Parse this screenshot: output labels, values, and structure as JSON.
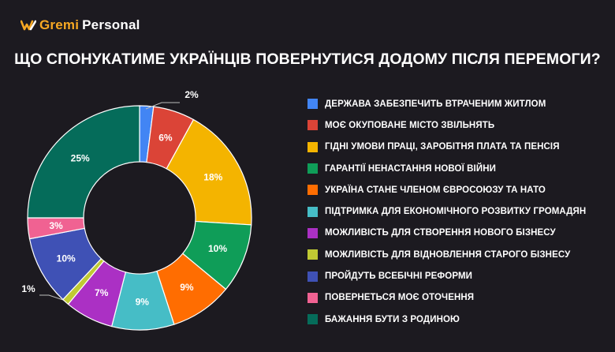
{
  "brand": {
    "name_accent": "Gremi",
    "name_rest": "Personal",
    "icon": "gremi-logo-icon",
    "accent_color": "#f7a823"
  },
  "chart_data": {
    "type": "pie",
    "variant": "donut",
    "title": "ЩО СПОНУКАТИМЕ УКРАЇНЦІВ ПОВЕРНУТИСЯ ДОДОМУ ПІСЛЯ ПЕРЕМОГИ?",
    "legend_position": "right",
    "slices": [
      {
        "label": "ДЕРЖАВА ЗАБЕЗПЕЧИТЬ ВТРАЧЕНИМ ЖИТЛОМ",
        "value": 2,
        "value_label": "2%",
        "color": "#4285f4"
      },
      {
        "label": "МОЄ ОКУПОВАНЕ МІСТО ЗВІЛЬНЯТЬ",
        "value": 6,
        "value_label": "6%",
        "color": "#db4437"
      },
      {
        "label": "ГІДНІ УМОВИ ПРАЦІ, ЗАРОБІТНЯ ПЛАТА ТА ПЕНСІЯ",
        "value": 18,
        "value_label": "18%",
        "color": "#f4b400"
      },
      {
        "label": "ГАРАНТІЇ НЕНАСТАННЯ НОВОЇ ВІЙНИ",
        "value": 10,
        "value_label": "10%",
        "color": "#0f9d58"
      },
      {
        "label": "УКРАЇНА СТАНЕ ЧЛЕНОМ ЄВРОСОЮЗУ ТА НАТО",
        "value": 9,
        "value_label": "9%",
        "color": "#ff6d01"
      },
      {
        "label": "ПІДТРИМКА ДЛЯ ЕКОНОМІЧНОГО РОЗВИТКУ ГРОМАДЯН",
        "value": 9,
        "value_label": "9%",
        "color": "#46bdc6"
      },
      {
        "label": "МОЖЛИВІСТЬ ДЛЯ СТВОРЕННЯ НОВОГО БІЗНЕСУ",
        "value": 7,
        "value_label": "7%",
        "color": "#ab30c4"
      },
      {
        "label": "МОЖЛИВІСТЬ ДЛЯ ВІДНОВЛЕННЯ СТАРОГО БІЗНЕСУ",
        "value": 1,
        "value_label": "1%",
        "color": "#c0ca33"
      },
      {
        "label": "ПРОЙДУТЬ ВСЕБІЧНІ РЕФОРМИ",
        "value": 10,
        "value_label": "10%",
        "color": "#3f51b5"
      },
      {
        "label": "ПОВЕРНЕТЬСЯ МОЄ ОТОЧЕННЯ",
        "value": 3,
        "value_label": "3%",
        "color": "#f06292"
      },
      {
        "label": "БАЖАННЯ  БУТИ З РОДИНОЮ",
        "value": 25,
        "value_label": "25%",
        "color": "#056c5a"
      }
    ]
  }
}
